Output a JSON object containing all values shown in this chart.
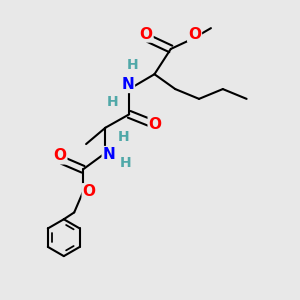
{
  "bg_color": "#e8e8e8",
  "bond_color": "#000000",
  "bond_width": 1.5,
  "atom_colors": {
    "O": "#ff0000",
    "N": "#0000ff",
    "H": "#4fa8a8"
  },
  "font_size": 11
}
